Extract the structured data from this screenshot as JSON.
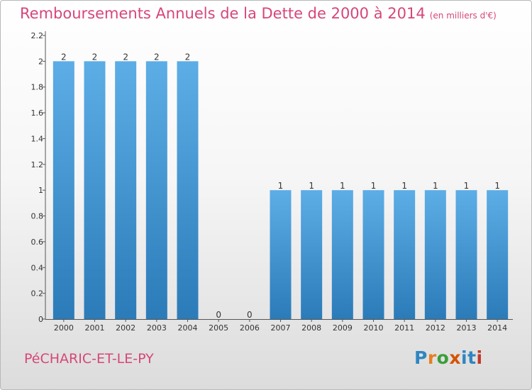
{
  "chart_data": {
    "type": "bar",
    "title": "Remboursements Annuels de la Dette de 2000 à 2014",
    "unit_label": "(en milliers d'€)",
    "categories": [
      "2000",
      "2001",
      "2002",
      "2003",
      "2004",
      "2005",
      "2006",
      "2007",
      "2008",
      "2009",
      "2010",
      "2011",
      "2012",
      "2013",
      "2014"
    ],
    "values": [
      2,
      2,
      2,
      2,
      2,
      0,
      0,
      1,
      1,
      1,
      1,
      1,
      1,
      1,
      1
    ],
    "value_labels": [
      "2",
      "2",
      "2",
      "2",
      "2",
      "0",
      "0",
      "1",
      "1",
      "1",
      "1",
      "1",
      "1",
      "1",
      "1"
    ],
    "ylim": [
      0,
      2.2
    ],
    "yticks": [
      0,
      0.2,
      0.4,
      0.6,
      0.8,
      1,
      1.2,
      1.4,
      1.6,
      1.8,
      2,
      2.2
    ],
    "ytick_labels": [
      "0",
      "0.2",
      "0.4",
      "0.6",
      "0.8",
      "1",
      "1.2",
      "1.4",
      "1.6",
      "1.8",
      "2",
      "2.2"
    ],
    "xlabel": "",
    "ylabel": "",
    "grid": false,
    "bar_color_top": "#5dade6",
    "bar_color_bottom": "#2b7bb9"
  },
  "footer": {
    "commune": "PéCHARIC-ET-LE-PY",
    "logo_text": "Proxiti",
    "logo_colors": [
      "#2e86c1",
      "#e67e22",
      "#3a9e3a",
      "#d35400",
      "#2e86c1",
      "#2e86c1",
      "#c0392b"
    ]
  },
  "colors": {
    "title": "#d6467a",
    "axis": "#555555",
    "text": "#333333"
  }
}
